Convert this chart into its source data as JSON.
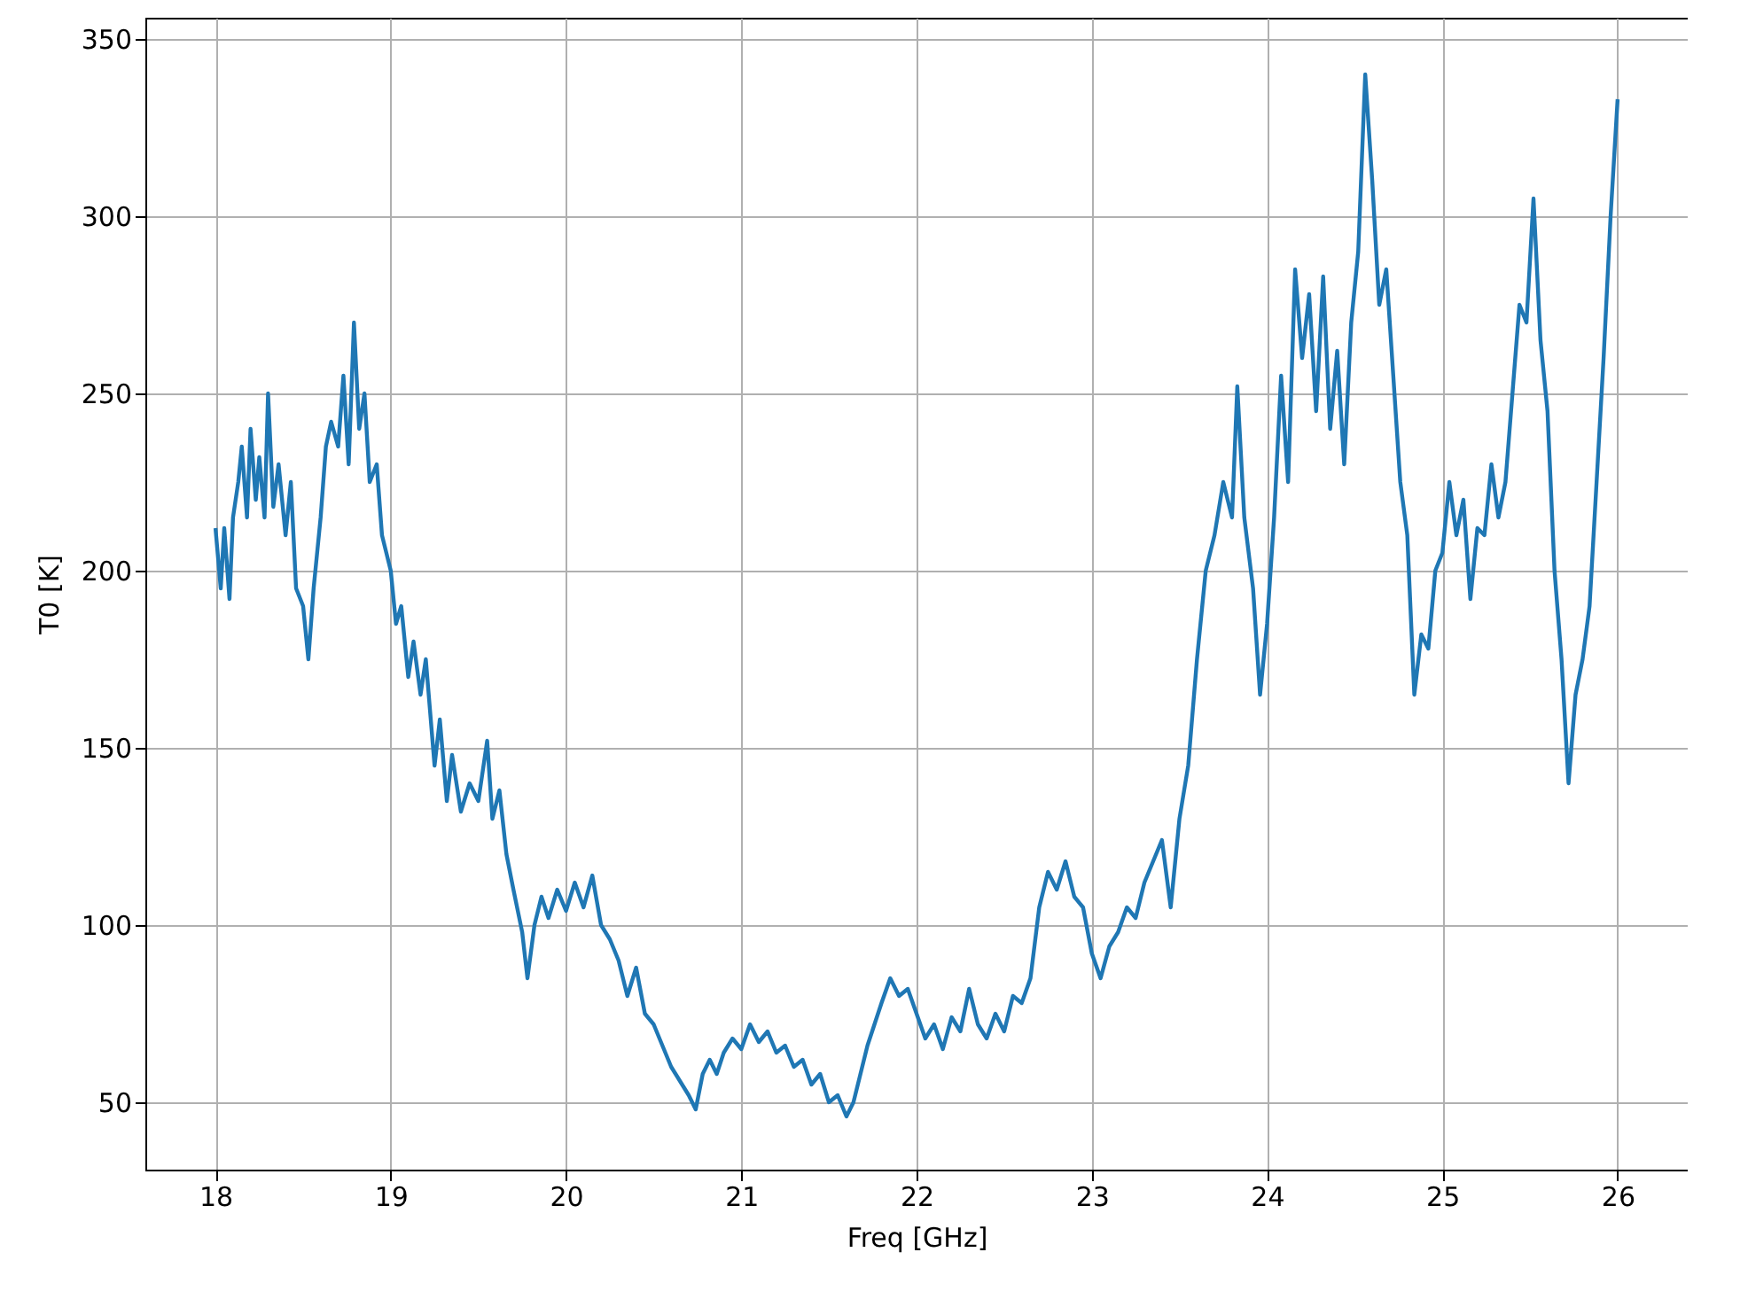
{
  "chart_data": {
    "type": "line",
    "xlabel": "Freq [GHz]",
    "ylabel": "T0 [K]",
    "xlim": [
      17.6,
      26.4
    ],
    "ylim": [
      31,
      356
    ],
    "xticks": [
      18,
      19,
      20,
      21,
      22,
      23,
      24,
      25,
      26
    ],
    "yticks": [
      50,
      100,
      150,
      200,
      250,
      300,
      350
    ],
    "grid": true,
    "x": [
      18.0,
      18.03,
      18.05,
      18.08,
      18.1,
      18.13,
      18.15,
      18.18,
      18.2,
      18.23,
      18.25,
      18.28,
      18.3,
      18.33,
      18.36,
      18.4,
      18.43,
      18.46,
      18.5,
      18.53,
      18.56,
      18.6,
      18.63,
      18.66,
      18.7,
      18.73,
      18.76,
      18.79,
      18.82,
      18.85,
      18.88,
      18.92,
      18.95,
      19.0,
      19.03,
      19.06,
      19.1,
      19.13,
      19.17,
      19.2,
      19.25,
      19.28,
      19.32,
      19.35,
      19.4,
      19.45,
      19.5,
      19.55,
      19.58,
      19.62,
      19.66,
      19.7,
      19.75,
      19.78,
      19.82,
      19.86,
      19.9,
      19.95,
      20.0,
      20.05,
      20.1,
      20.15,
      20.2,
      20.25,
      20.3,
      20.35,
      20.4,
      20.45,
      20.5,
      20.55,
      20.6,
      20.65,
      20.7,
      20.74,
      20.78,
      20.82,
      20.86,
      20.9,
      20.95,
      21.0,
      21.05,
      21.1,
      21.15,
      21.2,
      21.25,
      21.3,
      21.35,
      21.4,
      21.45,
      21.5,
      21.55,
      21.6,
      21.64,
      21.68,
      21.72,
      21.76,
      21.8,
      21.85,
      21.9,
      21.95,
      22.0,
      22.05,
      22.1,
      22.15,
      22.2,
      22.25,
      22.3,
      22.35,
      22.4,
      22.45,
      22.5,
      22.55,
      22.6,
      22.65,
      22.7,
      22.75,
      22.8,
      22.85,
      22.9,
      22.95,
      23.0,
      23.05,
      23.1,
      23.15,
      23.2,
      23.25,
      23.3,
      23.35,
      23.4,
      23.45,
      23.5,
      23.55,
      23.6,
      23.65,
      23.7,
      23.75,
      23.8,
      23.83,
      23.87,
      23.92,
      23.96,
      24.0,
      24.04,
      24.08,
      24.12,
      24.16,
      24.2,
      24.24,
      24.28,
      24.32,
      24.36,
      24.4,
      24.44,
      24.48,
      24.52,
      24.56,
      24.6,
      24.64,
      24.68,
      24.72,
      24.76,
      24.8,
      24.84,
      24.88,
      24.92,
      24.96,
      25.0,
      25.04,
      25.08,
      25.12,
      25.16,
      25.2,
      25.24,
      25.28,
      25.32,
      25.36,
      25.4,
      25.44,
      25.48,
      25.52,
      25.56,
      25.6,
      25.64,
      25.68,
      25.72,
      25.76,
      25.8,
      25.84,
      25.88,
      25.92,
      25.96,
      26.0
    ],
    "series": [
      {
        "color": "#1f77b4",
        "values": [
          212,
          195,
          212,
          192,
          215,
          225,
          235,
          215,
          240,
          220,
          232,
          215,
          250,
          218,
          230,
          210,
          225,
          195,
          190,
          175,
          195,
          215,
          235,
          242,
          235,
          255,
          230,
          270,
          240,
          250,
          225,
          230,
          210,
          200,
          185,
          190,
          170,
          180,
          165,
          175,
          145,
          158,
          135,
          148,
          132,
          140,
          135,
          152,
          130,
          138,
          120,
          110,
          98,
          85,
          100,
          108,
          102,
          110,
          104,
          112,
          105,
          114,
          100,
          96,
          90,
          80,
          88,
          75,
          72,
          66,
          60,
          56,
          52,
          48,
          58,
          62,
          58,
          64,
          68,
          65,
          72,
          67,
          70,
          64,
          66,
          60,
          62,
          55,
          58,
          50,
          52,
          46,
          50,
          58,
          66,
          72,
          78,
          85,
          80,
          82,
          75,
          68,
          72,
          65,
          74,
          70,
          82,
          72,
          68,
          75,
          70,
          80,
          78,
          85,
          105,
          115,
          110,
          118,
          108,
          105,
          92,
          85,
          94,
          98,
          105,
          102,
          112,
          118,
          124,
          105,
          130,
          145,
          175,
          200,
          210,
          225,
          215,
          252,
          215,
          195,
          165,
          185,
          215,
          255,
          225,
          285,
          260,
          278,
          245,
          283,
          240,
          262,
          230,
          270,
          290,
          340,
          310,
          275,
          285,
          255,
          225,
          210,
          165,
          182,
          178,
          200,
          205,
          225,
          210,
          220,
          192,
          212,
          210,
          230,
          215,
          225,
          250,
          275,
          270,
          305,
          265,
          245,
          200,
          175,
          140,
          165,
          175,
          190,
          225,
          260,
          300,
          333
        ]
      }
    ]
  }
}
